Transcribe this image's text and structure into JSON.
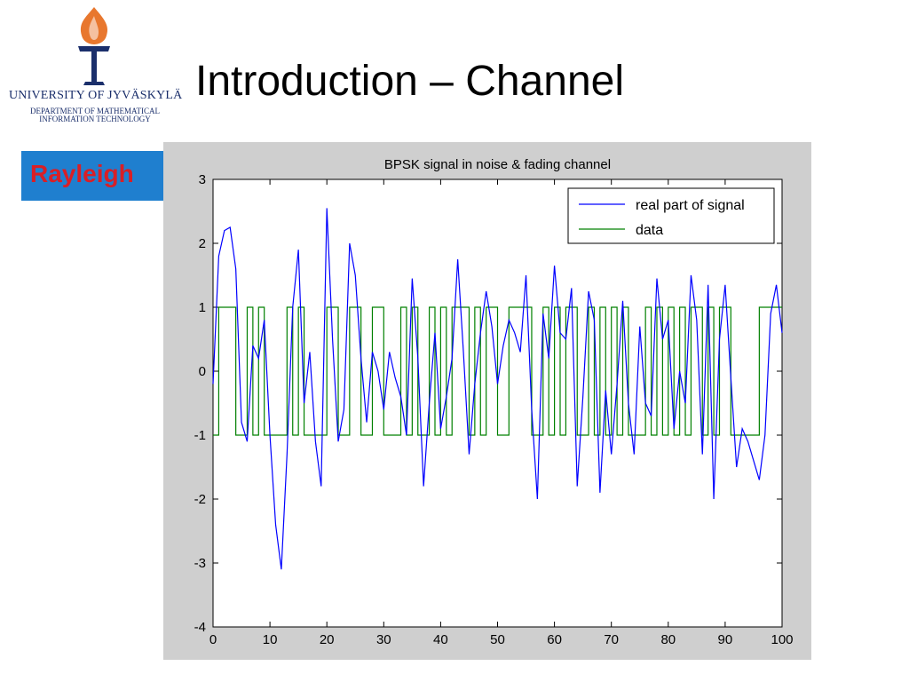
{
  "logo": {
    "university": "UNIVERSITY OF JYVÄSKYLÄ",
    "department_line1": "DEPARTMENT OF MATHEMATICAL",
    "department_line2": "INFORMATION TECHNOLOGY",
    "colors": {
      "flame": "#e8772e",
      "navy": "#1b2f6b"
    }
  },
  "slide": {
    "title": "Introduction – Channel",
    "tag": "Rayleigh"
  },
  "chart_data": {
    "type": "line",
    "title": "BPSK signal in noise & fading channel",
    "xlabel": "",
    "ylabel": "",
    "xlim": [
      0,
      100
    ],
    "ylim": [
      -4,
      3
    ],
    "xticks": [
      0,
      10,
      20,
      30,
      40,
      50,
      60,
      70,
      80,
      90,
      100
    ],
    "yticks": [
      -4,
      -3,
      -2,
      -1,
      0,
      1,
      2,
      3
    ],
    "grid": false,
    "legend_position": "top-right",
    "series": [
      {
        "name": "real part of signal",
        "color": "#0000ff",
        "x": [
          0,
          1,
          2,
          3,
          4,
          5,
          6,
          7,
          8,
          9,
          10,
          11,
          12,
          13,
          14,
          15,
          16,
          17,
          18,
          19,
          20,
          21,
          22,
          23,
          24,
          25,
          26,
          27,
          28,
          29,
          30,
          31,
          32,
          33,
          34,
          35,
          36,
          37,
          38,
          39,
          40,
          41,
          42,
          43,
          44,
          45,
          46,
          47,
          48,
          49,
          50,
          51,
          52,
          53,
          54,
          55,
          56,
          57,
          58,
          59,
          60,
          61,
          62,
          63,
          64,
          65,
          66,
          67,
          68,
          69,
          70,
          71,
          72,
          73,
          74,
          75,
          76,
          77,
          78,
          79,
          80,
          81,
          82,
          83,
          84,
          85,
          86,
          87,
          88,
          89,
          90,
          91,
          92,
          93,
          94,
          95,
          96,
          97,
          98,
          99,
          100
        ],
        "values": [
          -0.2,
          1.8,
          2.2,
          2.25,
          1.6,
          -0.8,
          -1.1,
          0.4,
          0.2,
          0.8,
          -1.0,
          -2.4,
          -3.1,
          -1.3,
          1.0,
          1.9,
          -0.5,
          0.3,
          -1.1,
          -1.8,
          2.55,
          0.5,
          -1.1,
          -0.6,
          2.0,
          1.5,
          0.2,
          -0.8,
          0.3,
          0.0,
          -0.6,
          0.3,
          -0.1,
          -0.4,
          -1.0,
          1.45,
          0.2,
          -1.8,
          -0.5,
          0.6,
          -0.9,
          -0.4,
          0.2,
          1.75,
          0.3,
          -1.3,
          -0.2,
          0.6,
          1.25,
          0.7,
          -0.2,
          0.4,
          0.8,
          0.6,
          0.3,
          1.5,
          -0.6,
          -2.0,
          0.9,
          0.2,
          1.65,
          0.6,
          0.5,
          1.3,
          -1.8,
          -0.4,
          1.25,
          0.8,
          -1.9,
          -0.3,
          -1.3,
          -0.2,
          1.1,
          -0.5,
          -1.3,
          0.7,
          -0.5,
          -0.7,
          1.45,
          0.5,
          0.8,
          -0.9,
          0.0,
          -0.5,
          1.5,
          0.8,
          -1.3,
          1.35,
          -2.0,
          0.5,
          1.35,
          -0.1,
          -1.5,
          -0.9,
          -1.1,
          -1.4,
          -1.7,
          -1.0,
          0.9,
          1.35,
          0.6
        ]
      },
      {
        "name": "data",
        "color": "#008000",
        "step": true,
        "x": [
          0,
          1,
          2,
          3,
          4,
          5,
          6,
          7,
          8,
          9,
          10,
          11,
          12,
          13,
          14,
          15,
          16,
          17,
          18,
          19,
          20,
          21,
          22,
          23,
          24,
          25,
          26,
          27,
          28,
          29,
          30,
          31,
          32,
          33,
          34,
          35,
          36,
          37,
          38,
          39,
          40,
          41,
          42,
          43,
          44,
          45,
          46,
          47,
          48,
          49,
          50,
          51,
          52,
          53,
          54,
          55,
          56,
          57,
          58,
          59,
          60,
          61,
          62,
          63,
          64,
          65,
          66,
          67,
          68,
          69,
          70,
          71,
          72,
          73,
          74,
          75,
          76,
          77,
          78,
          79,
          80,
          81,
          82,
          83,
          84,
          85,
          86,
          87,
          88,
          89,
          90,
          91,
          92,
          93,
          94,
          95,
          96,
          97,
          98,
          99
        ],
        "values": [
          -1,
          1,
          1,
          1,
          -1,
          -1,
          1,
          -1,
          1,
          -1,
          -1,
          -1,
          -1,
          1,
          -1,
          1,
          -1,
          -1,
          -1,
          -1,
          1,
          1,
          -1,
          -1,
          1,
          1,
          -1,
          -1,
          1,
          1,
          -1,
          -1,
          -1,
          1,
          -1,
          1,
          -1,
          -1,
          1,
          -1,
          1,
          -1,
          1,
          1,
          1,
          -1,
          1,
          -1,
          1,
          1,
          -1,
          -1,
          1,
          1,
          1,
          1,
          -1,
          -1,
          1,
          -1,
          1,
          -1,
          1,
          1,
          -1,
          -1,
          1,
          -1,
          1,
          -1,
          1,
          -1,
          1,
          -1,
          -1,
          -1,
          1,
          -1,
          1,
          -1,
          1,
          -1,
          1,
          -1,
          1,
          1,
          -1,
          1,
          -1,
          1,
          1,
          -1,
          -1,
          -1,
          -1,
          -1,
          1,
          1,
          1,
          1
        ]
      }
    ]
  }
}
